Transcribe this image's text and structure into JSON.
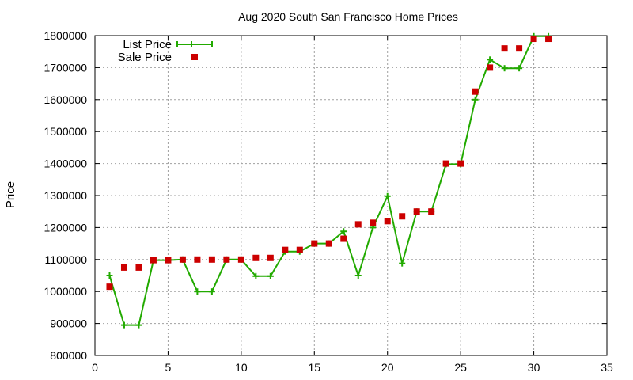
{
  "chart_data": {
    "type": "line",
    "title": "Aug 2020 South San Francisco Home Prices",
    "xlabel": "",
    "ylabel": "Price",
    "xlim": [
      0,
      35
    ],
    "ylim": [
      800000,
      1800000
    ],
    "x_ticks": [
      "0",
      "5",
      "10",
      "15",
      "20",
      "25",
      "30",
      "35"
    ],
    "y_ticks": [
      "800000",
      "900000",
      "1000000",
      "1100000",
      "1200000",
      "1300000",
      "1400000",
      "1500000",
      "1600000",
      "1700000",
      "1800000"
    ],
    "grid": true,
    "legend_position": "top-left",
    "colors": {
      "list": "#22aa00",
      "sale": "#cc0000"
    },
    "series": [
      {
        "name": "List Price",
        "style": "line-plus",
        "points": [
          [
            1,
            1050000
          ],
          [
            2,
            895000
          ],
          [
            3,
            895000
          ],
          [
            4,
            1098000
          ],
          [
            5,
            1098000
          ],
          [
            6,
            1100000
          ],
          [
            7,
            1000000
          ],
          [
            8,
            1000000
          ],
          [
            9,
            1100000
          ],
          [
            10,
            1100000
          ],
          [
            11,
            1048000
          ],
          [
            12,
            1048000
          ],
          [
            13,
            1125000
          ],
          [
            14,
            1125000
          ],
          [
            15,
            1150000
          ],
          [
            16,
            1150000
          ],
          [
            17,
            1188000
          ],
          [
            18,
            1050000
          ],
          [
            19,
            1200000
          ],
          [
            20,
            1298000
          ],
          [
            21,
            1088000
          ],
          [
            22,
            1250000
          ],
          [
            23,
            1250000
          ],
          [
            24,
            1398000
          ],
          [
            25,
            1398000
          ],
          [
            26,
            1600000
          ],
          [
            27,
            1725000
          ],
          [
            28,
            1698000
          ],
          [
            29,
            1698000
          ],
          [
            30,
            1798000
          ],
          [
            31,
            1798000
          ]
        ]
      },
      {
        "name": "Sale Price",
        "style": "square",
        "points": [
          [
            1,
            1015000
          ],
          [
            2,
            1075000
          ],
          [
            3,
            1075000
          ],
          [
            4,
            1098000
          ],
          [
            5,
            1098000
          ],
          [
            6,
            1100000
          ],
          [
            7,
            1100000
          ],
          [
            8,
            1100000
          ],
          [
            9,
            1100000
          ],
          [
            10,
            1100000
          ],
          [
            11,
            1105000
          ],
          [
            12,
            1105000
          ],
          [
            13,
            1130000
          ],
          [
            14,
            1130000
          ],
          [
            15,
            1150000
          ],
          [
            16,
            1150000
          ],
          [
            17,
            1165000
          ],
          [
            18,
            1210000
          ],
          [
            19,
            1215000
          ],
          [
            20,
            1220000
          ],
          [
            21,
            1235000
          ],
          [
            22,
            1250000
          ],
          [
            23,
            1250000
          ],
          [
            24,
            1400000
          ],
          [
            25,
            1400000
          ],
          [
            26,
            1625000
          ],
          [
            27,
            1700000
          ],
          [
            28,
            1760000
          ],
          [
            29,
            1760000
          ],
          [
            30,
            1790000
          ],
          [
            31,
            1790000
          ]
        ]
      }
    ]
  }
}
